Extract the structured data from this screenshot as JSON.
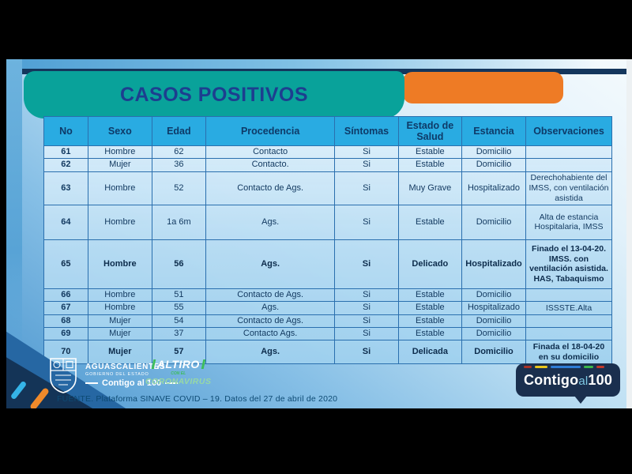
{
  "title": "CASOS POSITIVOS",
  "table": {
    "columns": [
      "No",
      "Sexo",
      "Edad",
      "Procedencia",
      "Síntomas",
      "Estado de Salud",
      "Estancia",
      "Observaciones"
    ],
    "rows": [
      {
        "no": "61",
        "sexo": "Hombre",
        "edad": "62",
        "procedencia": "Contacto",
        "sintomas": "Si",
        "estado": "Estable",
        "estancia": "Domicilio",
        "observaciones": "",
        "bold": false
      },
      {
        "no": "62",
        "sexo": "Mujer",
        "edad": "36",
        "procedencia": "Contacto.",
        "sintomas": "Si",
        "estado": "Estable",
        "estancia": "Domicilio",
        "observaciones": "",
        "bold": false
      },
      {
        "no": "63",
        "sexo": "Hombre",
        "edad": "52",
        "procedencia": "Contacto de Ags.",
        "sintomas": "Si",
        "estado": "Muy Grave",
        "estancia": "Hospitalizado",
        "observaciones": "Derechohabiente del IMSS, con ventilación asistida",
        "bold": false
      },
      {
        "no": "64",
        "sexo": "Hombre",
        "edad": "1a 6m",
        "procedencia": "Ags.",
        "sintomas": "Si",
        "estado": "Estable",
        "estancia": "Domicilio",
        "observaciones": "Alta de estancia Hospitalaria, IMSS",
        "bold": false
      },
      {
        "no": "65",
        "sexo": "Hombre",
        "edad": "56",
        "procedencia": "Ags.",
        "sintomas": "Si",
        "estado": "Delicado",
        "estancia": "Hospitalizado",
        "observaciones": "Finado el 13-04-20.\nIMSS. con ventilación asistida.\nHAS, Tabaquismo",
        "bold": true
      },
      {
        "no": "66",
        "sexo": "Hombre",
        "edad": "51",
        "procedencia": "Contacto de Ags.",
        "sintomas": "Si",
        "estado": "Estable",
        "estancia": "Domicilio",
        "observaciones": "",
        "bold": false
      },
      {
        "no": "67",
        "sexo": "Hombre",
        "edad": "55",
        "procedencia": "Ags.",
        "sintomas": "Si",
        "estado": "Estable",
        "estancia": "Hospitalizado",
        "observaciones": "ISSSTE.Alta",
        "bold": false
      },
      {
        "no": "68",
        "sexo": "Mujer",
        "edad": "54",
        "procedencia": "Contacto de Ags.",
        "sintomas": "Si",
        "estado": "Estable",
        "estancia": "Domicilio",
        "observaciones": "",
        "bold": false
      },
      {
        "no": "69",
        "sexo": "Mujer",
        "edad": "37",
        "procedencia": "Contacto Ags.",
        "sintomas": "Si",
        "estado": "Estable",
        "estancia": "Domicilio",
        "observaciones": "",
        "bold": false
      },
      {
        "no": "70",
        "sexo": "Mujer",
        "edad": "57",
        "procedencia": "Ags.",
        "sintomas": "Si",
        "estado": "Delicada",
        "estancia": "Domicilio",
        "observaciones": "Finada el 18-04-20\nen su domicilio",
        "bold": true
      }
    ]
  },
  "footer": {
    "gov_logo": {
      "line1": "AGUASCALIENTES",
      "line2": "GOBIERNO DEL ESTADO",
      "line3": "Contigo al 100"
    },
    "altiro_logo": {
      "line1": "ALTIRO",
      "line2": "CON EL",
      "line3": "CORONAVIRUS"
    },
    "source": "FUENTE. Plataforma SINAVE COVID – 19. Datos del 27 de abril de 2020",
    "badge": {
      "part1": "Contigo",
      "part2": "al",
      "part3": "100"
    }
  },
  "colors": {
    "teal": "#09a29a",
    "orange": "#ee7b25",
    "header-blue": "#29abe2",
    "navy": "#14365c",
    "title-navy": "#1d3e8f"
  }
}
